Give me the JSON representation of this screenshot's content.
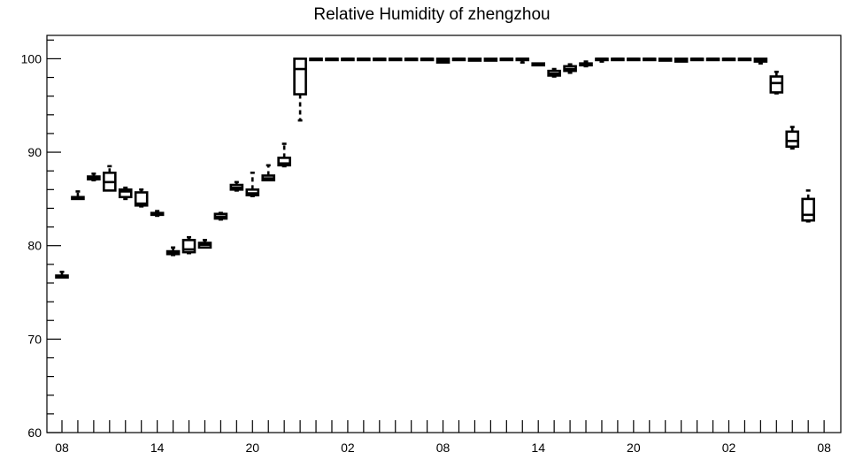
{
  "chart_data": {
    "type": "boxplot",
    "title": "Relative Humidity of zhengzhou",
    "ylim": [
      60,
      102.5
    ],
    "yticks": [
      60,
      70,
      80,
      90,
      100
    ],
    "x_tick_labels": [
      "08",
      "14",
      "20",
      "02",
      "08",
      "14",
      "20",
      "02",
      "08"
    ],
    "x_tick_label_positions": [
      0,
      6,
      12,
      18,
      24,
      30,
      36,
      42,
      48
    ],
    "n_slots": 48,
    "grid": false,
    "boxes": [
      {
        "x": 0,
        "lo": 76.6,
        "q1": 76.6,
        "med": 76.7,
        "q3": 76.8,
        "hi": 77.2
      },
      {
        "x": 1,
        "lo": 85.0,
        "q1": 85.0,
        "med": 85.1,
        "q3": 85.2,
        "hi": 85.8
      },
      {
        "x": 2,
        "lo": 87.0,
        "q1": 87.1,
        "med": 87.3,
        "q3": 87.4,
        "hi": 87.7
      },
      {
        "x": 3,
        "lo": 85.9,
        "q1": 85.9,
        "med": 86.8,
        "q3": 87.8,
        "hi": 88.5
      },
      {
        "x": 4,
        "lo": 85.0,
        "q1": 85.2,
        "med": 85.8,
        "q3": 86.0,
        "hi": 86.2
      },
      {
        "x": 5,
        "lo": 84.2,
        "q1": 84.3,
        "med": 84.5,
        "q3": 85.7,
        "hi": 86.0
      },
      {
        "x": 6,
        "lo": 83.2,
        "q1": 83.3,
        "med": 83.4,
        "q3": 83.5,
        "hi": 83.7
      },
      {
        "x": 7,
        "lo": 79.0,
        "q1": 79.1,
        "med": 79.3,
        "q3": 79.4,
        "hi": 79.8
      },
      {
        "x": 8,
        "lo": 79.2,
        "q1": 79.3,
        "med": 79.6,
        "q3": 80.6,
        "hi": 80.9
      },
      {
        "x": 9,
        "lo": 79.8,
        "q1": 79.8,
        "med": 80.1,
        "q3": 80.3,
        "hi": 80.6
      },
      {
        "x": 10,
        "lo": 82.8,
        "q1": 82.9,
        "med": 83.1,
        "q3": 83.4,
        "hi": 83.5
      },
      {
        "x": 11,
        "lo": 85.9,
        "q1": 86.0,
        "med": 86.2,
        "q3": 86.5,
        "hi": 86.8
      },
      {
        "x": 12,
        "lo": 85.3,
        "q1": 85.4,
        "med": 85.6,
        "q3": 86.0,
        "hi": 87.8
      },
      {
        "x": 13,
        "lo": 87.0,
        "q1": 87.0,
        "med": 87.2,
        "q3": 87.5,
        "hi": 88.6
      },
      {
        "x": 14,
        "lo": 88.5,
        "q1": 88.6,
        "med": 88.8,
        "q3": 89.4,
        "hi": 90.9
      },
      {
        "x": 15,
        "lo": 93.4,
        "q1": 96.2,
        "med": 98.9,
        "q3": 100.0,
        "hi": 100.0
      },
      {
        "x": 16,
        "lo": 100.0,
        "q1": 100.0,
        "med": 100.0,
        "q3": 100.0,
        "hi": 100.0
      },
      {
        "x": 17,
        "lo": 100.0,
        "q1": 100.0,
        "med": 100.0,
        "q3": 100.0,
        "hi": 100.0
      },
      {
        "x": 18,
        "lo": 100.0,
        "q1": 100.0,
        "med": 100.0,
        "q3": 100.0,
        "hi": 100.0
      },
      {
        "x": 19,
        "lo": 100.0,
        "q1": 100.0,
        "med": 100.0,
        "q3": 100.0,
        "hi": 100.0
      },
      {
        "x": 20,
        "lo": 100.0,
        "q1": 100.0,
        "med": 100.0,
        "q3": 100.0,
        "hi": 100.0
      },
      {
        "x": 21,
        "lo": 100.0,
        "q1": 100.0,
        "med": 100.0,
        "q3": 100.0,
        "hi": 100.0
      },
      {
        "x": 22,
        "lo": 100.0,
        "q1": 100.0,
        "med": 100.0,
        "q3": 100.0,
        "hi": 100.0
      },
      {
        "x": 23,
        "lo": 100.0,
        "q1": 100.0,
        "med": 100.0,
        "q3": 100.0,
        "hi": 100.0
      },
      {
        "x": 24,
        "lo": 99.6,
        "q1": 99.6,
        "med": 99.8,
        "q3": 100.0,
        "hi": 100.0
      },
      {
        "x": 25,
        "lo": 100.0,
        "q1": 100.0,
        "med": 100.0,
        "q3": 100.0,
        "hi": 100.0
      },
      {
        "x": 26,
        "lo": 99.8,
        "q1": 99.8,
        "med": 99.9,
        "q3": 100.0,
        "hi": 100.0
      },
      {
        "x": 27,
        "lo": 99.8,
        "q1": 99.8,
        "med": 99.9,
        "q3": 100.0,
        "hi": 100.0
      },
      {
        "x": 28,
        "lo": 100.0,
        "q1": 100.0,
        "med": 100.0,
        "q3": 100.0,
        "hi": 100.0
      },
      {
        "x": 29,
        "lo": 99.6,
        "q1": 100.0,
        "med": 100.0,
        "q3": 100.0,
        "hi": 100.0
      },
      {
        "x": 30,
        "lo": 99.3,
        "q1": 99.3,
        "med": 99.4,
        "q3": 99.5,
        "hi": 99.5
      },
      {
        "x": 31,
        "lo": 98.1,
        "q1": 98.2,
        "med": 98.4,
        "q3": 98.7,
        "hi": 98.9
      },
      {
        "x": 32,
        "lo": 98.5,
        "q1": 98.7,
        "med": 98.9,
        "q3": 99.2,
        "hi": 99.4
      },
      {
        "x": 33,
        "lo": 99.2,
        "q1": 99.3,
        "med": 99.4,
        "q3": 99.5,
        "hi": 99.7
      },
      {
        "x": 34,
        "lo": 99.7,
        "q1": 100.0,
        "med": 100.0,
        "q3": 100.0,
        "hi": 100.0
      },
      {
        "x": 35,
        "lo": 100.0,
        "q1": 100.0,
        "med": 100.0,
        "q3": 100.0,
        "hi": 100.0
      },
      {
        "x": 36,
        "lo": 100.0,
        "q1": 100.0,
        "med": 100.0,
        "q3": 100.0,
        "hi": 100.0
      },
      {
        "x": 37,
        "lo": 100.0,
        "q1": 100.0,
        "med": 100.0,
        "q3": 100.0,
        "hi": 100.0
      },
      {
        "x": 38,
        "lo": 99.8,
        "q1": 99.8,
        "med": 99.9,
        "q3": 100.0,
        "hi": 100.0
      },
      {
        "x": 39,
        "lo": 99.7,
        "q1": 99.7,
        "med": 99.8,
        "q3": 100.0,
        "hi": 100.0
      },
      {
        "x": 40,
        "lo": 100.0,
        "q1": 100.0,
        "med": 100.0,
        "q3": 100.0,
        "hi": 100.0
      },
      {
        "x": 41,
        "lo": 100.0,
        "q1": 100.0,
        "med": 100.0,
        "q3": 100.0,
        "hi": 100.0
      },
      {
        "x": 42,
        "lo": 100.0,
        "q1": 100.0,
        "med": 100.0,
        "q3": 100.0,
        "hi": 100.0
      },
      {
        "x": 43,
        "lo": 100.0,
        "q1": 100.0,
        "med": 100.0,
        "q3": 100.0,
        "hi": 100.0
      },
      {
        "x": 44,
        "lo": 99.5,
        "q1": 99.7,
        "med": 99.8,
        "q3": 100.0,
        "hi": 100.0
      },
      {
        "x": 45,
        "lo": 96.3,
        "q1": 96.4,
        "med": 97.4,
        "q3": 98.1,
        "hi": 98.6
      },
      {
        "x": 46,
        "lo": 90.4,
        "q1": 90.6,
        "med": 91.2,
        "q3": 92.2,
        "hi": 92.7
      },
      {
        "x": 47,
        "lo": 82.6,
        "q1": 82.7,
        "med": 83.3,
        "q3": 85.0,
        "hi": 85.9
      }
    ]
  }
}
